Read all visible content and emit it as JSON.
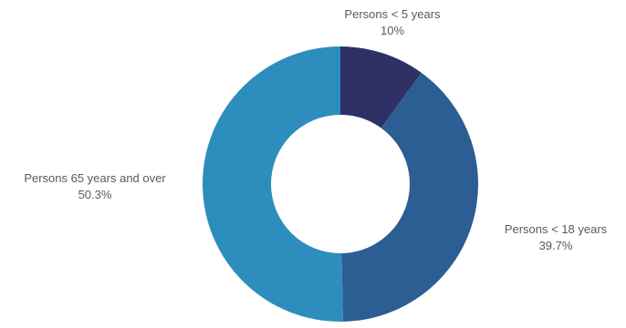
{
  "chart_data": {
    "type": "pie",
    "variant": "donut",
    "slices": [
      {
        "label": "Persons < 5 years",
        "value": 10,
        "display": "10%",
        "color": "#2e3066"
      },
      {
        "label": "Persons < 18 years",
        "value": 39.7,
        "display": "39.7%",
        "color": "#2c5d93"
      },
      {
        "label": "Persons 65 years and over",
        "value": 50.3,
        "display": "50.3%",
        "color": "#2d8ebd"
      }
    ],
    "legend": "none",
    "start_angle": "12 o'clock, clockwise"
  }
}
